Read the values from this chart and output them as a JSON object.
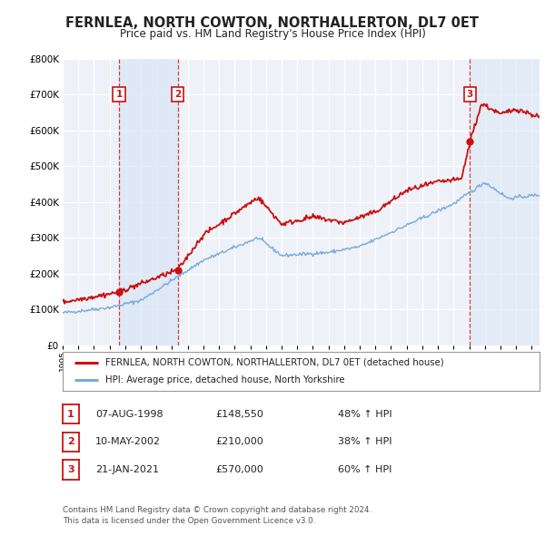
{
  "title": "FERNLEA, NORTH COWTON, NORTHALLERTON, DL7 0ET",
  "subtitle": "Price paid vs. HM Land Registry's House Price Index (HPI)",
  "background_color": "#ffffff",
  "plot_bg_color": "#eef2f8",
  "grid_color": "#ffffff",
  "sale_color": "#cc1111",
  "hpi_color": "#7aaadd",
  "sale_label": "FERNLEA, NORTH COWTON, NORTHALLERTON, DL7 0ET (detached house)",
  "hpi_label": "HPI: Average price, detached house, North Yorkshire",
  "transactions": [
    {
      "label": "1",
      "date": "07-AUG-1998",
      "price": 148550,
      "pct": "48%",
      "year": 1998.6
    },
    {
      "label": "2",
      "date": "10-MAY-2002",
      "price": 210000,
      "pct": "38%",
      "year": 2002.36
    },
    {
      "label": "3",
      "date": "21-JAN-2021",
      "price": 570000,
      "pct": "60%",
      "year": 2021.05
    }
  ],
  "footer": "Contains HM Land Registry data © Crown copyright and database right 2024.\nThis data is licensed under the Open Government Licence v3.0.",
  "ylim": [
    0,
    800000
  ],
  "yticks": [
    0,
    100000,
    200000,
    300000,
    400000,
    500000,
    600000,
    700000,
    800000
  ],
  "xlim_start": 1995.0,
  "xlim_end": 2025.5
}
